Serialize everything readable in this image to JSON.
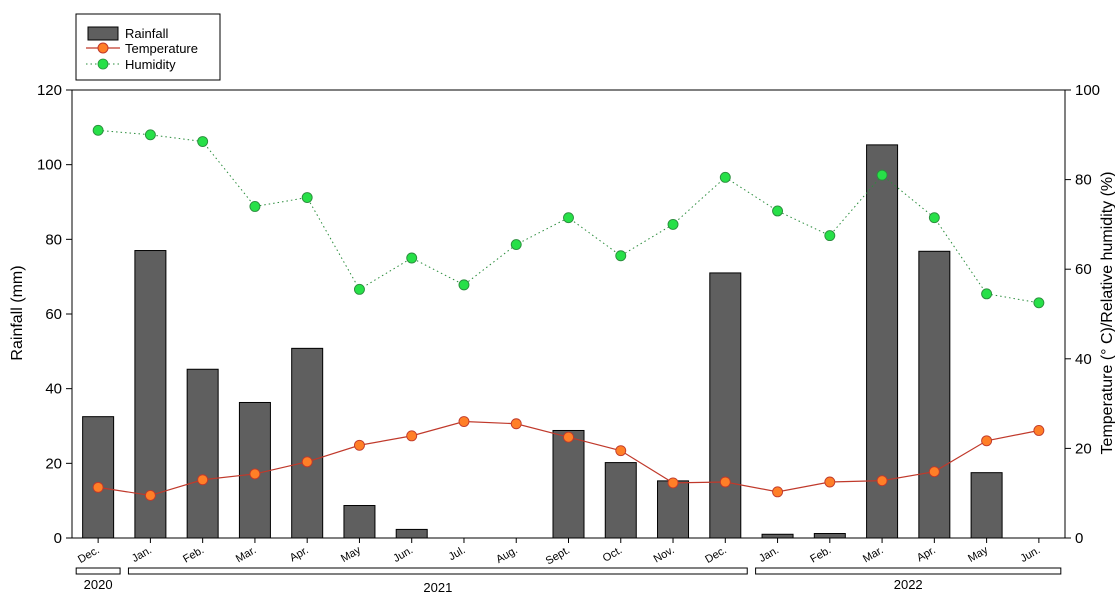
{
  "chart_data": {
    "type": "bar",
    "categories": [
      "Dec.",
      "Jan.",
      "Feb.",
      "Mar.",
      "Apr.",
      "May",
      "Jun.",
      "Jul.",
      "Aug.",
      "Sept.",
      "Oct.",
      "Nov.",
      "Dec.",
      "Jan.",
      "Feb.",
      "Mar.",
      "Apr.",
      "May",
      "Jun."
    ],
    "years": [
      {
        "label": "2020",
        "from": 0,
        "to": 0
      },
      {
        "label": "2021",
        "from": 1,
        "to": 12
      },
      {
        "label": "2022",
        "from": 13,
        "to": 18
      }
    ],
    "series": [
      {
        "name": "Rainfall",
        "kind": "bar",
        "axis": "left",
        "color": "#5f5f5f",
        "values": [
          32.5,
          77,
          45.2,
          36.3,
          50.8,
          8.7,
          2.3,
          0,
          0,
          28.8,
          20.2,
          15.3,
          71,
          1,
          1.2,
          105.3,
          76.8,
          17.5,
          0
        ]
      },
      {
        "name": "Temperature",
        "kind": "line",
        "axis": "right",
        "color": "#ff7f27",
        "line_color": "#c0392b",
        "values": [
          11.3,
          9.5,
          13,
          14.3,
          17,
          20.7,
          22.8,
          26,
          25.5,
          22.5,
          19.5,
          12.3,
          12.5,
          10.3,
          12.5,
          12.8,
          14.8,
          21.7,
          24
        ]
      },
      {
        "name": "Humidity",
        "kind": "line",
        "axis": "right",
        "color": "#27e048",
        "line_color": "#2a8c3c",
        "dash": "dotted",
        "values": [
          91,
          90,
          88.5,
          74,
          76,
          55.5,
          62.5,
          56.5,
          65.5,
          71.5,
          63,
          70,
          80.5,
          73,
          67.5,
          81,
          71.5,
          54.5,
          52.5
        ]
      }
    ],
    "left_axis": {
      "label": "Rainfall (mm)",
      "min": 0,
      "max": 120,
      "ticks": [
        0,
        20,
        40,
        60,
        80,
        100,
        120
      ]
    },
    "right_axis": {
      "label": "Temperature (° C)/Relative humidity (%)",
      "min": 0,
      "max": 100,
      "ticks": [
        0,
        20,
        40,
        60,
        80,
        100
      ]
    },
    "legend": {
      "position": "top-left",
      "entries": [
        "Rainfall",
        "Temperature",
        "Humidity"
      ]
    },
    "grid": false
  }
}
